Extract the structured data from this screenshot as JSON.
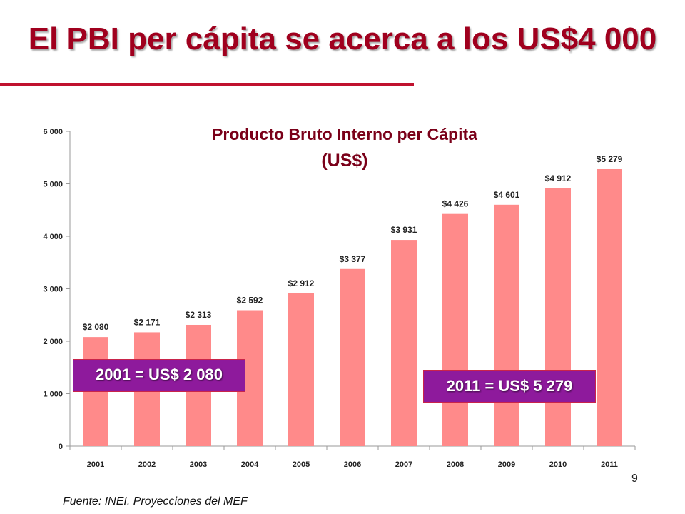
{
  "slide": {
    "title": "El PBI per cápita se acerca a los US$4 000",
    "page_number": "9",
    "source": "Fuente: INEI. Proyecciones del MEF"
  },
  "callouts": {
    "left": "2001 = US$ 2 080",
    "right": "2011 = US$ 5 279"
  },
  "colors": {
    "bar": "#ff8a8a",
    "title": "#a0001e",
    "callout_fill": "#8e1a9c",
    "callout_border": "#c9244a"
  },
  "chart_data": {
    "type": "bar",
    "title": "Producto Bruto Interno per Cápita",
    "subtitle": "(US$)",
    "categories": [
      "2001",
      "2002",
      "2003",
      "2004",
      "2005",
      "2006",
      "2007",
      "2008",
      "2009",
      "2010",
      "2011"
    ],
    "values": [
      2080,
      2171,
      2313,
      2592,
      2912,
      3377,
      3931,
      4426,
      4601,
      4912,
      5279
    ],
    "value_labels": [
      "$2 080",
      "$2 171",
      "$2 313",
      "$2 592",
      "$2 912",
      "$3 377",
      "$3 931",
      "$4 426",
      "$4 601",
      "$4 912",
      "$5 279"
    ],
    "ylim": [
      0,
      6000
    ],
    "yticks": [
      0,
      1000,
      2000,
      3000,
      4000,
      5000,
      6000
    ],
    "ytick_labels": [
      "0",
      "1 000",
      "2 000",
      "3 000",
      "4 000",
      "5 000",
      "6 000"
    ],
    "grid": false,
    "legend": "none"
  }
}
